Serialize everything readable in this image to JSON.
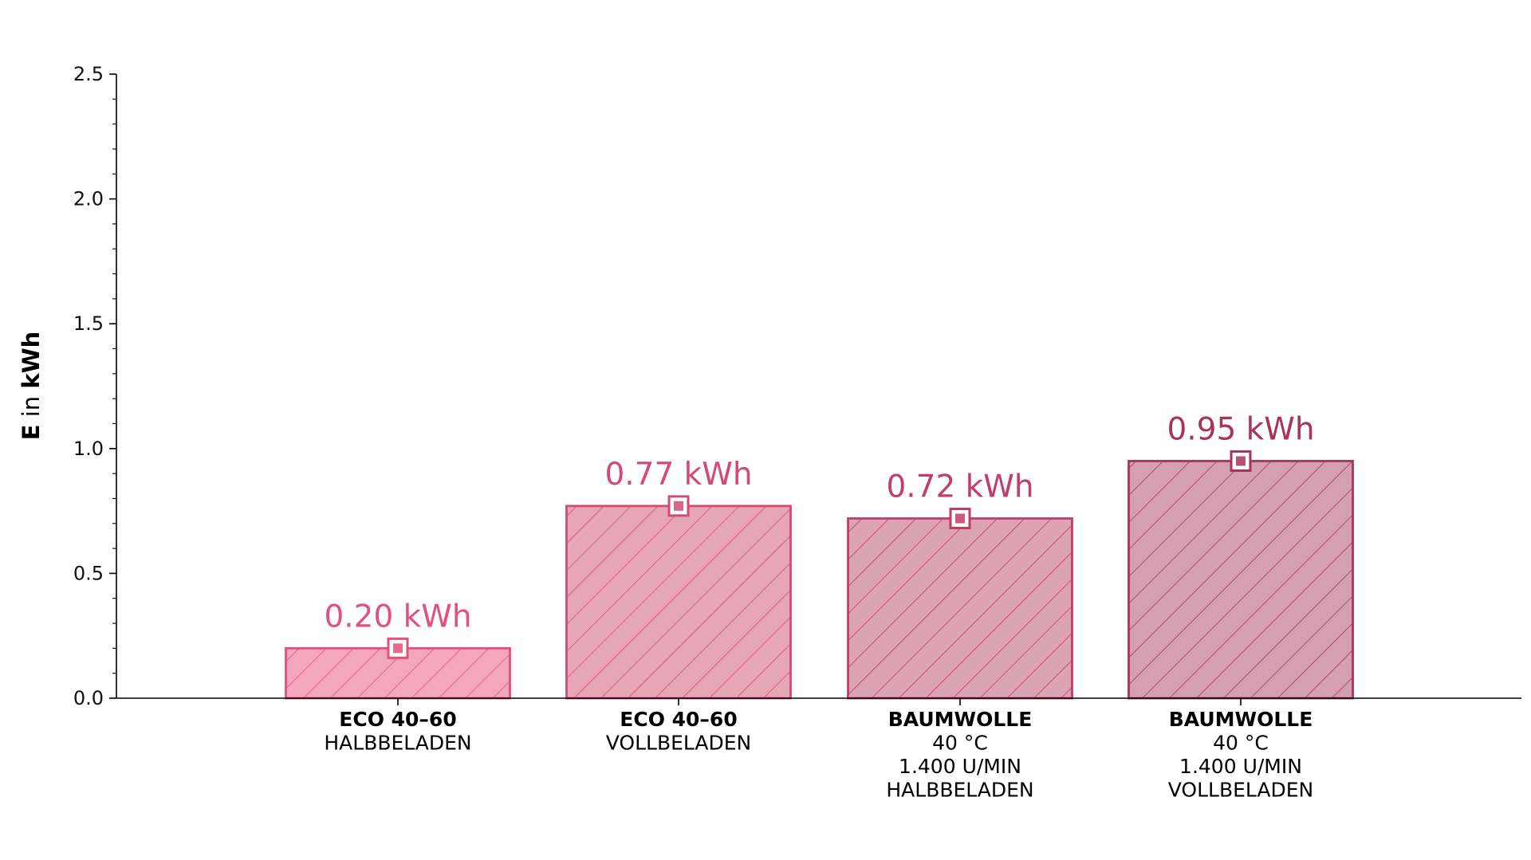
{
  "chart_data": {
    "type": "bar",
    "categories": [
      {
        "bold": "ECO 40–60",
        "lines": [
          "HALBBELADEN"
        ]
      },
      {
        "bold": "ECO 40–60",
        "lines": [
          "VOLLBELADEN"
        ]
      },
      {
        "bold": "BAUMWOLLE",
        "lines": [
          "40 °C",
          "1.400 U/MIN",
          "HALBBELADEN"
        ]
      },
      {
        "bold": "BAUMWOLLE",
        "lines": [
          "40 °C",
          "1.400 U/MIN",
          "VOLLBELADEN"
        ]
      }
    ],
    "values": [
      0.2,
      0.77,
      0.72,
      0.95
    ],
    "value_labels": [
      "0.20 kWh",
      "0.77 kWh",
      "0.72 kWh",
      "0.95 kWh"
    ],
    "ylabel": {
      "bold_part": "E",
      "normal_part": " in ",
      "unit": "kWh"
    },
    "ylim": [
      0,
      2.5
    ],
    "yticks": [
      "0.0",
      "0.5",
      "1.0",
      "1.5",
      "2.0",
      "2.5"
    ],
    "grid": false,
    "colors": {
      "fills": [
        "#f4a7bc",
        "#e7a6b6",
        "#dca3b4",
        "#d4a0b1"
      ],
      "strokes": [
        "#e0527d",
        "#d34a74",
        "#c43d67",
        "#a83559"
      ],
      "label_colors": [
        "#e0527d",
        "#d34a74",
        "#c43d67",
        "#a83559"
      ],
      "axis": "#000000"
    }
  }
}
